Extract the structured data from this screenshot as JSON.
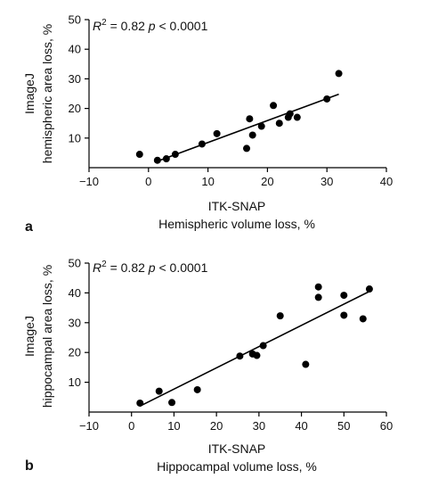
{
  "chart_data": [
    {
      "type": "scatter",
      "panel_label": "a",
      "annotation": {
        "r_label": "R",
        "r_exp": "2",
        "r_value": " = 0.82 ",
        "p_label": "p",
        "p_value": " < 0.0001"
      },
      "xlabel_line1": "ITK-SNAP",
      "xlabel_line2": "Hemispheric volume loss, %",
      "ylabel_line1": "ImageJ",
      "ylabel_line2": "hemispheric area loss, %",
      "xlim": [
        -10,
        40
      ],
      "ylim": [
        0,
        50
      ],
      "xticks": [
        -10,
        0,
        10,
        20,
        30,
        40
      ],
      "yticks": [
        10,
        20,
        30,
        40,
        50
      ],
      "xtick_labels": [
        "−10",
        "0",
        "10",
        "20",
        "30",
        "40"
      ],
      "ytick_labels": [
        "10",
        "20",
        "30",
        "40",
        "50"
      ],
      "grid": false,
      "points": [
        {
          "x": -1.5,
          "y": 4.5
        },
        {
          "x": 1.5,
          "y": 2.5
        },
        {
          "x": 3,
          "y": 3
        },
        {
          "x": 4.5,
          "y": 4.5
        },
        {
          "x": 9,
          "y": 8
        },
        {
          "x": 11.5,
          "y": 11.5
        },
        {
          "x": 16.5,
          "y": 6.5
        },
        {
          "x": 17,
          "y": 16.5
        },
        {
          "x": 17.5,
          "y": 11
        },
        {
          "x": 19,
          "y": 14
        },
        {
          "x": 21,
          "y": 21
        },
        {
          "x": 22,
          "y": 15
        },
        {
          "x": 23.5,
          "y": 17
        },
        {
          "x": 23.8,
          "y": 18.2
        },
        {
          "x": 25,
          "y": 17
        },
        {
          "x": 30,
          "y": 23.2
        },
        {
          "x": 32,
          "y": 31.8
        }
      ],
      "fit_line": {
        "x": [
          1.5,
          32
        ],
        "y": [
          2.2,
          24.8
        ]
      }
    },
    {
      "type": "scatter",
      "panel_label": "b",
      "annotation": {
        "r_label": "R",
        "r_exp": "2",
        "r_value": " = 0.82 ",
        "p_label": "p",
        "p_value": " < 0.0001"
      },
      "xlabel_line1": "ITK-SNAP",
      "xlabel_line2": "Hippocampal volume loss, %",
      "ylabel_line1": "ImageJ",
      "ylabel_line2": "hippocampal area loss, %",
      "xlim": [
        -10,
        60
      ],
      "ylim": [
        0,
        50
      ],
      "xticks": [
        -10,
        0,
        10,
        20,
        30,
        40,
        50,
        60
      ],
      "yticks": [
        10,
        20,
        30,
        40,
        50
      ],
      "xtick_labels": [
        "−10",
        "0",
        "10",
        "20",
        "30",
        "40",
        "50",
        "60"
      ],
      "ytick_labels": [
        "10",
        "20",
        "30",
        "40",
        "50"
      ],
      "grid": false,
      "points": [
        {
          "x": 2,
          "y": 3
        },
        {
          "x": 6.5,
          "y": 7
        },
        {
          "x": 9.5,
          "y": 3.2
        },
        {
          "x": 15.5,
          "y": 7.5
        },
        {
          "x": 25.5,
          "y": 18.8
        },
        {
          "x": 28.5,
          "y": 19.5
        },
        {
          "x": 29.5,
          "y": 19
        },
        {
          "x": 31,
          "y": 22.3
        },
        {
          "x": 35,
          "y": 32.3
        },
        {
          "x": 41,
          "y": 16
        },
        {
          "x": 44,
          "y": 42
        },
        {
          "x": 44,
          "y": 38.5
        },
        {
          "x": 50,
          "y": 39.2
        },
        {
          "x": 50,
          "y": 32.5
        },
        {
          "x": 54.5,
          "y": 31.3
        },
        {
          "x": 56,
          "y": 41.3
        }
      ],
      "fit_line": {
        "x": [
          2,
          56
        ],
        "y": [
          2,
          40.5
        ]
      }
    }
  ]
}
